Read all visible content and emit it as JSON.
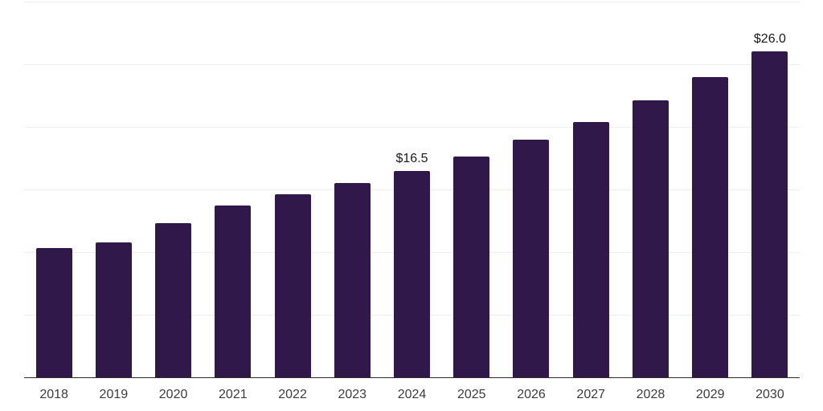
{
  "chart_data": {
    "type": "bar",
    "title": "",
    "xlabel": "",
    "ylabel": "",
    "categories": [
      "2018",
      "2019",
      "2020",
      "2021",
      "2022",
      "2023",
      "2024",
      "2025",
      "2026",
      "2027",
      "2028",
      "2029",
      "2030"
    ],
    "values": [
      10.3,
      10.8,
      12.3,
      13.7,
      14.6,
      15.5,
      16.5,
      17.6,
      19.0,
      20.4,
      22.1,
      24.0,
      26.0
    ],
    "data_labels": [
      null,
      null,
      null,
      null,
      null,
      null,
      "$16.5",
      null,
      null,
      null,
      null,
      null,
      "$26.0"
    ],
    "ylim": [
      0,
      30
    ],
    "gridline_values": [
      5,
      10,
      15,
      20,
      25,
      30
    ],
    "y_axis_labels_visible": false,
    "legend": "none",
    "grid": "horizontal",
    "colors": {
      "bar": "#31184a",
      "gridline": "#ededed",
      "axis_line": "#2b2b2b",
      "tick_label": "#3c3c3c",
      "data_label": "#1a1a1a",
      "background": "#ffffff"
    }
  }
}
